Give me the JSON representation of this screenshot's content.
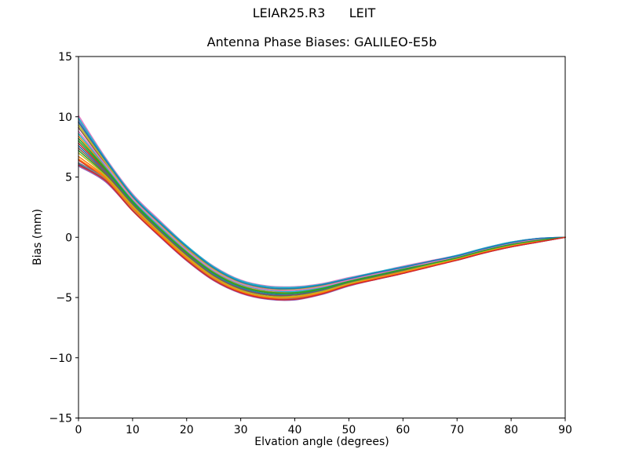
{
  "figure": {
    "background": "#ffffff",
    "text_color": "#000000"
  },
  "chart_data": {
    "type": "line",
    "suptitle": "LEIAR25.R3      LEIT",
    "title": "Antenna Phase Biases: GALILEO-E5b",
    "xlabel": "Elvation angle (degrees)",
    "ylabel": "Bias (mm)",
    "xlim": [
      0,
      90
    ],
    "ylim": [
      -15,
      15
    ],
    "xticks": [
      0,
      10,
      20,
      30,
      40,
      50,
      60,
      70,
      80,
      90
    ],
    "xticklabels": [
      "0",
      "10",
      "20",
      "30",
      "40",
      "50",
      "60",
      "70",
      "80",
      "90"
    ],
    "yticks": [
      -15,
      -10,
      -5,
      0,
      5,
      10,
      15
    ],
    "yticklabels": [
      "−15",
      "−10",
      "−5",
      "0",
      "5",
      "10",
      "15"
    ],
    "grid": false,
    "legend": "none",
    "line_width": 1.5,
    "x": [
      0,
      5,
      10,
      15,
      20,
      25,
      30,
      35,
      40,
      45,
      50,
      55,
      60,
      65,
      70,
      75,
      80,
      85,
      90
    ],
    "series": [
      {
        "name": "s01",
        "color": "#1f77b4",
        "values": [
          6.1,
          4.7,
          2.3,
          0.1,
          -1.9,
          -3.5,
          -4.6,
          -5.1,
          -5.15,
          -4.7,
          -4.0,
          -3.5,
          -3.0,
          -2.4,
          -1.9,
          -1.3,
          -0.8,
          -0.4,
          0
        ]
      },
      {
        "name": "s02",
        "color": "#ff7f0e",
        "values": [
          8.4,
          5.8,
          3.0,
          0.8,
          -1.2,
          -2.9,
          -4.0,
          -4.5,
          -4.55,
          -4.2,
          -3.6,
          -3.1,
          -2.6,
          -2.2,
          -1.7,
          -1.1,
          -0.6,
          -0.2,
          0
        ]
      },
      {
        "name": "s03",
        "color": "#2ca02c",
        "values": [
          7.2,
          5.2,
          2.6,
          0.4,
          -1.6,
          -3.2,
          -4.3,
          -4.8,
          -4.9,
          -4.5,
          -3.8,
          -3.3,
          -2.8,
          -2.3,
          -1.8,
          -1.2,
          -0.7,
          -0.3,
          0
        ]
      },
      {
        "name": "s04",
        "color": "#d62728",
        "values": [
          7.8,
          5.5,
          2.8,
          0.6,
          -1.4,
          -3.1,
          -4.2,
          -4.7,
          -4.75,
          -4.3,
          -3.7,
          -3.2,
          -2.7,
          -2.2,
          -1.7,
          -1.1,
          -0.6,
          -0.3,
          0
        ]
      },
      {
        "name": "s05",
        "color": "#9467bd",
        "values": [
          9.8,
          6.4,
          3.5,
          1.2,
          -0.8,
          -2.5,
          -3.6,
          -4.1,
          -4.2,
          -3.9,
          -3.4,
          -2.9,
          -2.5,
          -2.0,
          -1.5,
          -0.9,
          -0.4,
          -0.1,
          0
        ]
      },
      {
        "name": "s06",
        "color": "#8c564b",
        "values": [
          9.1,
          6.1,
          3.3,
          1.0,
          -1.0,
          -2.7,
          -3.8,
          -4.3,
          -4.4,
          -4.1,
          -3.5,
          -3.0,
          -2.6,
          -2.1,
          -1.6,
          -1.0,
          -0.5,
          -0.2,
          0
        ]
      },
      {
        "name": "s07",
        "color": "#e377c2",
        "values": [
          10.1,
          6.6,
          3.6,
          1.4,
          -0.7,
          -2.4,
          -3.55,
          -4.05,
          -4.1,
          -3.85,
          -3.35,
          -2.9,
          -2.4,
          -1.95,
          -1.5,
          -0.9,
          -0.4,
          -0.1,
          0
        ]
      },
      {
        "name": "s08",
        "color": "#7f7f7f",
        "values": [
          9.5,
          6.3,
          3.4,
          1.2,
          -0.85,
          -2.6,
          -3.7,
          -4.2,
          -4.25,
          -4.0,
          -3.45,
          -3.0,
          -2.5,
          -2.0,
          -1.55,
          -0.95,
          -0.45,
          -0.15,
          0
        ]
      },
      {
        "name": "s09",
        "color": "#bcbd22",
        "values": [
          9.3,
          6.2,
          3.3,
          1.1,
          -0.9,
          -2.65,
          -3.75,
          -4.25,
          -4.3,
          -4.05,
          -3.5,
          -3.0,
          -2.5,
          -2.05,
          -1.6,
          -1.0,
          -0.5,
          -0.15,
          0
        ]
      },
      {
        "name": "s10",
        "color": "#17becf",
        "values": [
          8.6,
          5.9,
          3.1,
          0.9,
          -1.1,
          -2.8,
          -3.9,
          -4.4,
          -4.5,
          -4.15,
          -3.6,
          -3.1,
          -2.6,
          -2.1,
          -1.65,
          -1.05,
          -0.55,
          -0.2,
          0
        ]
      },
      {
        "name": "s11",
        "color": "#1f77b4",
        "values": [
          7.6,
          5.4,
          2.8,
          0.6,
          -1.45,
          -3.1,
          -4.2,
          -4.7,
          -4.75,
          -4.4,
          -3.75,
          -3.25,
          -2.75,
          -2.25,
          -1.75,
          -1.15,
          -0.65,
          -0.3,
          0
        ]
      },
      {
        "name": "s12",
        "color": "#ff7f0e",
        "values": [
          6.7,
          5.0,
          2.5,
          0.3,
          -1.7,
          -3.35,
          -4.45,
          -4.95,
          -5.0,
          -4.55,
          -3.9,
          -3.4,
          -2.9,
          -2.35,
          -1.85,
          -1.25,
          -0.75,
          -0.35,
          0
        ]
      },
      {
        "name": "s13",
        "color": "#2ca02c",
        "values": [
          8.2,
          5.7,
          3.0,
          0.75,
          -1.25,
          -2.95,
          -4.05,
          -4.55,
          -4.6,
          -4.25,
          -3.65,
          -3.15,
          -2.65,
          -2.15,
          -1.7,
          -1.1,
          -0.6,
          -0.25,
          0
        ]
      },
      {
        "name": "s14",
        "color": "#d62728",
        "values": [
          6.4,
          4.8,
          2.4,
          0.2,
          -1.8,
          -3.45,
          -4.5,
          -5.0,
          -5.05,
          -4.65,
          -3.95,
          -3.45,
          -2.95,
          -2.4,
          -1.9,
          -1.3,
          -0.75,
          -0.35,
          0
        ]
      },
      {
        "name": "s15",
        "color": "#9467bd",
        "values": [
          5.9,
          4.6,
          2.2,
          0.05,
          -1.95,
          -3.6,
          -4.65,
          -5.15,
          -5.2,
          -4.75,
          -4.05,
          -3.5,
          -3.0,
          -2.45,
          -1.9,
          -1.3,
          -0.8,
          -0.4,
          0
        ]
      },
      {
        "name": "s16",
        "color": "#8c564b",
        "values": [
          7.4,
          5.3,
          2.7,
          0.5,
          -1.5,
          -3.2,
          -4.3,
          -4.8,
          -4.8,
          -4.45,
          -3.8,
          -3.3,
          -2.8,
          -2.3,
          -1.75,
          -1.15,
          -0.65,
          -0.3,
          0
        ]
      },
      {
        "name": "s17",
        "color": "#e377c2",
        "values": [
          8.8,
          6.0,
          3.2,
          1.0,
          -1.05,
          -2.75,
          -3.85,
          -4.35,
          -4.4,
          -4.1,
          -3.55,
          -3.05,
          -2.55,
          -2.1,
          -1.6,
          -1.0,
          -0.5,
          -0.2,
          0
        ]
      },
      {
        "name": "s18",
        "color": "#7f7f7f",
        "values": [
          6.2,
          4.8,
          2.3,
          0.15,
          -1.85,
          -3.5,
          -4.55,
          -5.05,
          -5.1,
          -4.7,
          -4.0,
          -3.45,
          -2.95,
          -2.4,
          -1.9,
          -1.3,
          -0.8,
          -0.4,
          0
        ]
      },
      {
        "name": "s19",
        "color": "#bcbd22",
        "values": [
          7.0,
          5.1,
          2.6,
          0.4,
          -1.6,
          -3.3,
          -4.4,
          -4.9,
          -4.9,
          -4.5,
          -3.85,
          -3.35,
          -2.85,
          -2.3,
          -1.8,
          -1.2,
          -0.7,
          -0.3,
          0
        ]
      },
      {
        "name": "s20",
        "color": "#17becf",
        "values": [
          9.9,
          6.5,
          3.5,
          1.3,
          -0.7,
          -2.45,
          -3.6,
          -4.1,
          -4.15,
          -3.9,
          -3.4,
          -2.9,
          -2.45,
          -2.0,
          -1.5,
          -0.9,
          -0.4,
          -0.1,
          0
        ]
      },
      {
        "name": "s21",
        "color": "#1f77b4",
        "values": [
          9.6,
          6.4,
          3.4,
          1.2,
          -0.8,
          -2.55,
          -3.7,
          -4.2,
          -4.25,
          -3.95,
          -3.45,
          -2.95,
          -2.5,
          -2.0,
          -1.55,
          -0.95,
          -0.45,
          -0.1,
          0
        ]
      },
      {
        "name": "s22",
        "color": "#ff7f0e",
        "values": [
          6.5,
          4.9,
          2.4,
          0.2,
          -1.75,
          -3.4,
          -4.5,
          -5.0,
          -5.0,
          -4.6,
          -3.95,
          -3.4,
          -2.9,
          -2.4,
          -1.85,
          -1.25,
          -0.75,
          -0.35,
          0
        ]
      },
      {
        "name": "s23",
        "color": "#2ca02c",
        "values": [
          8.0,
          5.6,
          2.9,
          0.7,
          -1.3,
          -3.0,
          -4.1,
          -4.6,
          -4.65,
          -4.3,
          -3.7,
          -3.2,
          -2.7,
          -2.2,
          -1.7,
          -1.1,
          -0.6,
          -0.25,
          0
        ]
      },
      {
        "name": "s24",
        "color": "#d62728",
        "values": [
          6.0,
          4.7,
          2.2,
          0.1,
          -1.9,
          -3.55,
          -4.6,
          -5.1,
          -5.15,
          -4.7,
          -4.0,
          -3.5,
          -3.0,
          -2.45,
          -1.9,
          -1.3,
          -0.8,
          -0.4,
          0
        ]
      }
    ]
  }
}
